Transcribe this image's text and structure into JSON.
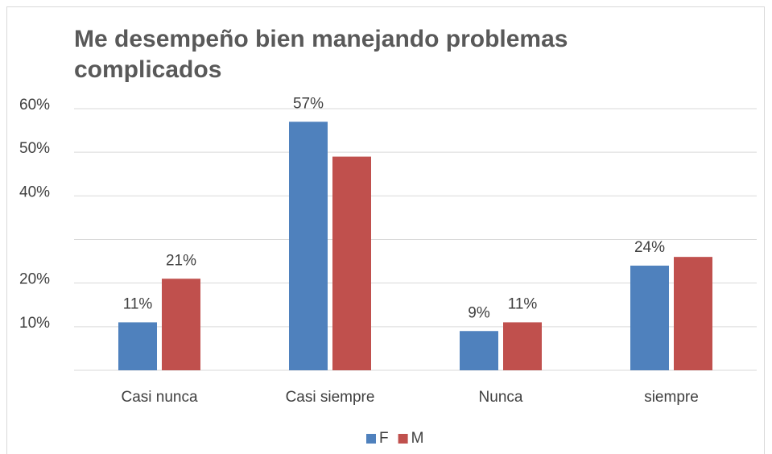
{
  "chart_data": {
    "type": "bar",
    "title": "Me desempeño bien manejando problemas complicados",
    "categories": [
      "Casi nunca",
      "Casi siempre",
      "Nunca",
      "siempre"
    ],
    "series": [
      {
        "name": "F",
        "color": "#4f81bd",
        "values": [
          11,
          57,
          9,
          24
        ],
        "value_labels": [
          "11%",
          "57%",
          "9%",
          "24%"
        ]
      },
      {
        "name": "M",
        "color": "#c0504d",
        "values": [
          21,
          49,
          11,
          26
        ],
        "value_labels": [
          "21%",
          null,
          "11%",
          null
        ]
      }
    ],
    "ylim": [
      0,
      60
    ],
    "yticks": [
      {
        "value": 10,
        "label": "10%"
      },
      {
        "value": 20,
        "label": "20%"
      },
      {
        "value": 40,
        "label": "40%"
      },
      {
        "value": 50,
        "label": "50%"
      },
      {
        "value": 60,
        "label": "60%"
      }
    ],
    "gridlines": [
      0,
      10,
      20,
      30,
      40,
      50,
      60
    ],
    "grid": true,
    "legend": "bottom"
  }
}
